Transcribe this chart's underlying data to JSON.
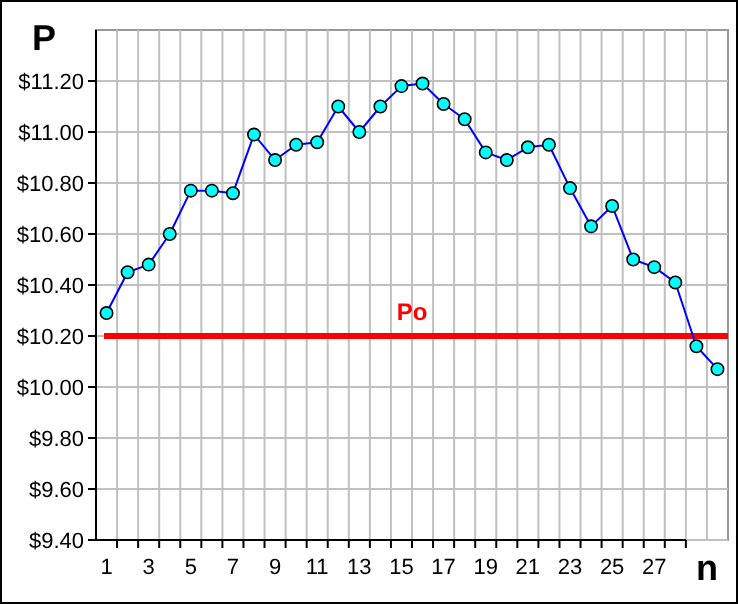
{
  "chart_data": {
    "type": "line",
    "xlabel": "n",
    "ylabel": "P",
    "x": [
      1,
      2,
      3,
      4,
      5,
      6,
      7,
      8,
      9,
      10,
      11,
      12,
      13,
      14,
      15,
      16,
      17,
      18,
      19,
      20,
      21,
      22,
      23,
      24,
      25,
      26,
      27,
      28,
      29,
      30
    ],
    "xlim": [
      0.5,
      30.5
    ],
    "xticks": [
      1,
      3,
      5,
      7,
      9,
      11,
      13,
      15,
      17,
      19,
      21,
      23,
      25,
      27
    ],
    "series": [
      {
        "color": "#0000ff",
        "values": [
          10.29,
          10.45,
          10.48,
          10.6,
          10.77,
          10.77,
          10.76,
          10.99,
          10.89,
          10.95,
          10.96,
          11.1,
          11.0,
          11.1,
          11.18,
          11.19,
          11.11,
          11.05,
          10.92,
          10.89,
          10.94,
          10.95,
          10.78,
          10.63,
          10.71,
          10.5,
          10.47,
          10.41,
          10.16,
          10.07
        ]
      }
    ],
    "ylim": [
      9.4,
      11.4
    ],
    "yticks": [
      {
        "value": 9.4,
        "label": "$9.40"
      },
      {
        "value": 9.6,
        "label": "$9.60"
      },
      {
        "value": 9.8,
        "label": "$9.80"
      },
      {
        "value": 10.0,
        "label": "$10.00"
      },
      {
        "value": 10.2,
        "label": "$10.20"
      },
      {
        "value": 10.4,
        "label": "$10.40"
      },
      {
        "value": 10.6,
        "label": "$10.60"
      },
      {
        "value": 10.8,
        "label": "$10.80"
      },
      {
        "value": 11.0,
        "label": "$11.00"
      },
      {
        "value": 11.2,
        "label": "$11.20"
      }
    ],
    "ref_lines": [
      {
        "axis": "y",
        "value": 10.2,
        "label": "Po",
        "color": "#ff0000"
      }
    ],
    "grid": true,
    "marker": "circle"
  }
}
